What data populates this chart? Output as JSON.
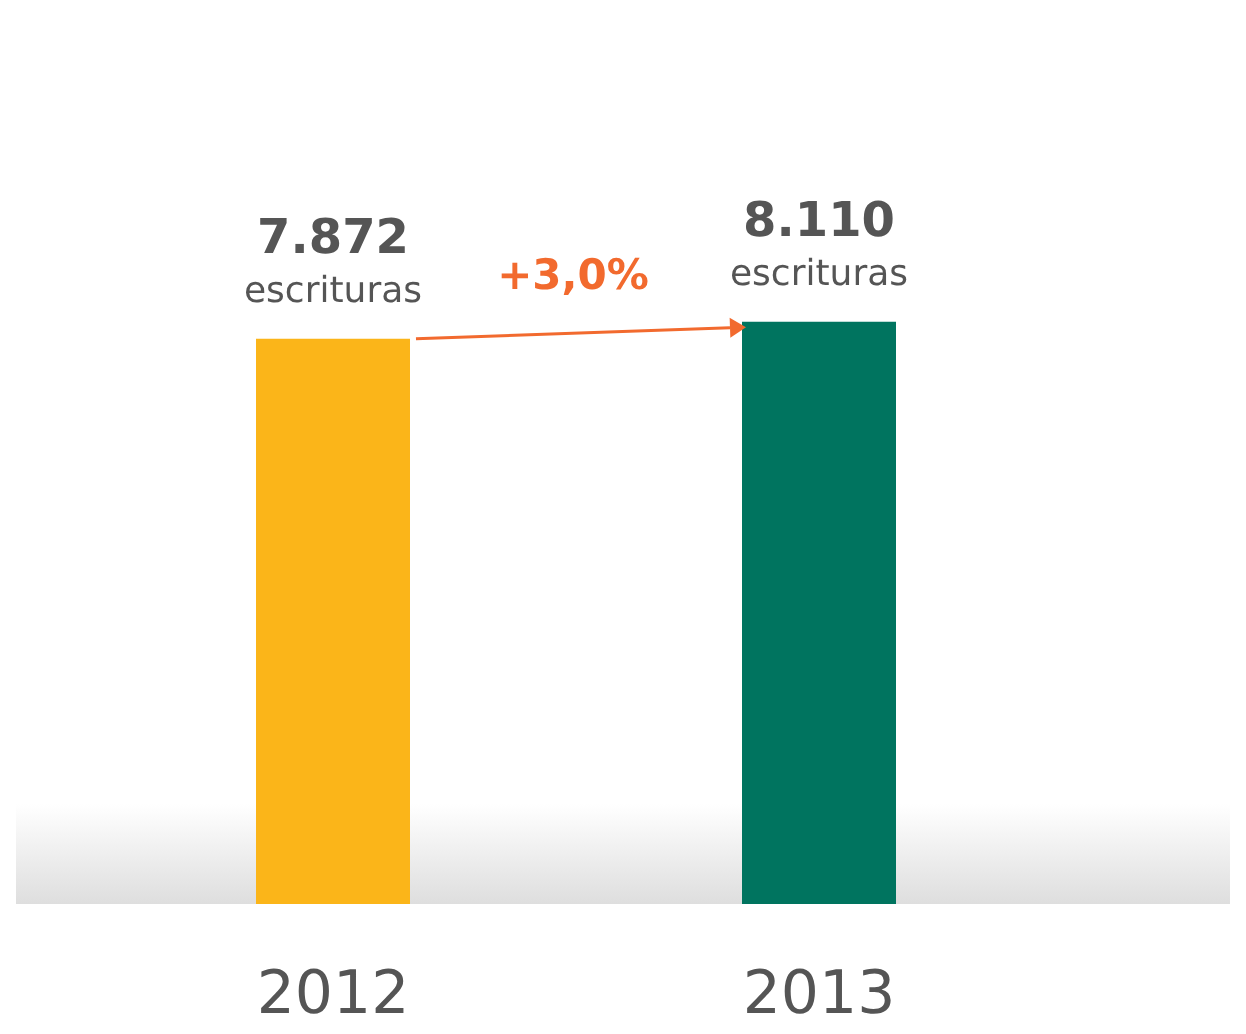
{
  "chart_data": {
    "type": "bar",
    "categories": [
      "2012",
      "2013"
    ],
    "values": [
      7872,
      8110
    ],
    "colors": [
      "#fbb519",
      "#00745f"
    ],
    "value_labels": [
      "7.872\nescrituras",
      "8.110\nescrituras"
    ],
    "annotations": [
      "+3,0%"
    ]
  }
}
